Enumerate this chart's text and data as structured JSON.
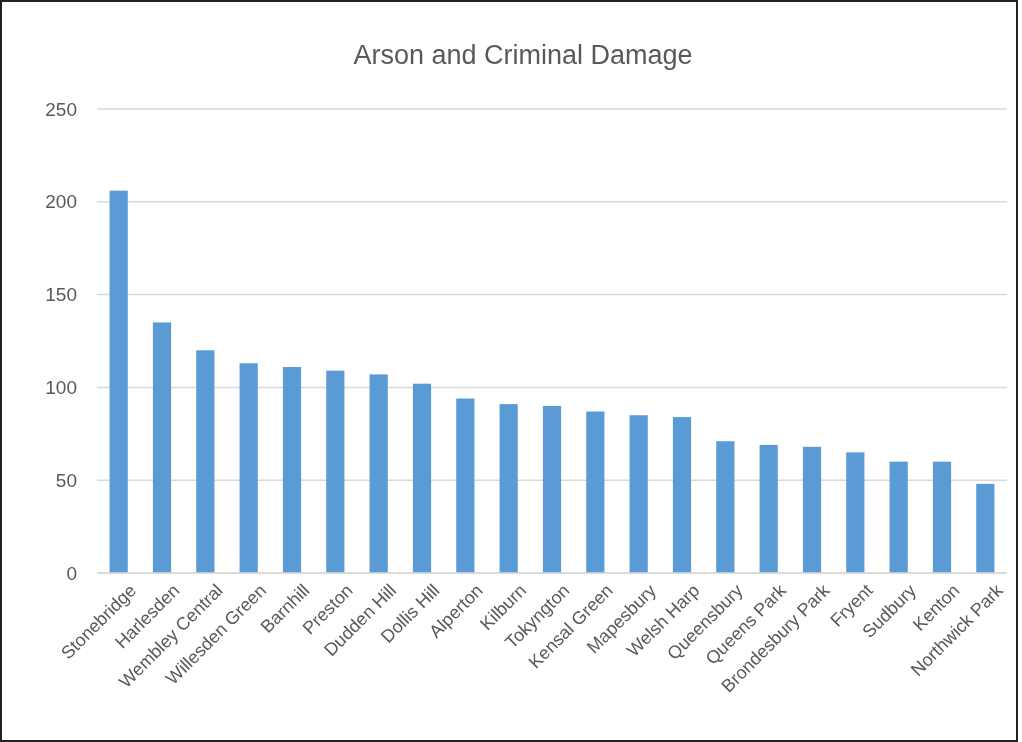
{
  "chart_data": {
    "type": "bar",
    "title": "Arson and Criminal Damage",
    "categories": [
      "Stonebridge",
      "Harlesden",
      "Wembley Central",
      "Willesden Green",
      "Barnhill",
      "Preston",
      "Dudden Hill",
      "Dollis Hill",
      "Alperton",
      "Kilburn",
      "Tokyngton",
      "Kensal Green",
      "Mapesbury",
      "Welsh Harp",
      "Queensbury",
      "Queens Park",
      "Brondesbury Park",
      "Fryent",
      "Sudbury",
      "Kenton",
      "Northwick Park"
    ],
    "values": [
      206,
      135,
      120,
      113,
      111,
      109,
      107,
      102,
      94,
      91,
      90,
      87,
      85,
      84,
      71,
      69,
      68,
      65,
      60,
      60,
      48
    ],
    "color": "#5b9bd5",
    "ylim": [
      0,
      250
    ],
    "yticks": [
      0,
      50,
      100,
      150,
      200,
      250
    ],
    "grid": "y"
  }
}
